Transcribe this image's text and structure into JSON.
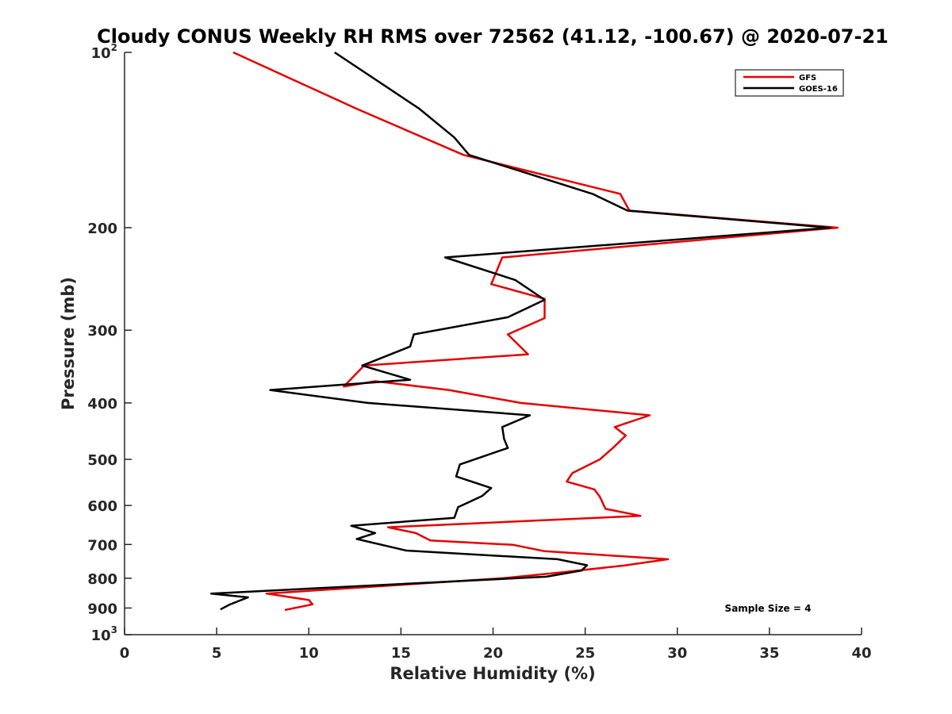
{
  "chart_data": {
    "type": "line",
    "title": "Cloudy CONUS Weekly RH RMS over 72562 (41.12, -100.67) @ 2020-07-21",
    "xlabel": "Relative Humidity (%)",
    "ylabel": "Pressure (mb)",
    "xlim": [
      0,
      40
    ],
    "ylim": [
      100,
      1000
    ],
    "y_scale": "log",
    "y_reversed": true,
    "grid": false,
    "legend_position": "top-right",
    "x_ticks": [
      "0",
      "5",
      "10",
      "15",
      "20",
      "25",
      "30",
      "35",
      "40"
    ],
    "x_tick_values": [
      0,
      5,
      10,
      15,
      20,
      25,
      30,
      35,
      40
    ],
    "y_ticks": [
      {
        "value": 100,
        "base": "10",
        "exp": "2"
      },
      {
        "value": 200,
        "base": "200",
        "exp": ""
      },
      {
        "value": 300,
        "base": "300",
        "exp": ""
      },
      {
        "value": 400,
        "base": "400",
        "exp": ""
      },
      {
        "value": 500,
        "base": "500",
        "exp": ""
      },
      {
        "value": 600,
        "base": "600",
        "exp": ""
      },
      {
        "value": 700,
        "base": "700",
        "exp": ""
      },
      {
        "value": 800,
        "base": "800",
        "exp": ""
      },
      {
        "value": 900,
        "base": "900",
        "exp": ""
      },
      {
        "value": 1000,
        "base": "10",
        "exp": "3"
      }
    ],
    "series": [
      {
        "name": "GFS",
        "color": "#e60000",
        "points": [
          [
            5.9,
            100
          ],
          [
            12.6,
            125
          ],
          [
            18.4,
            150
          ],
          [
            26.9,
            175
          ],
          [
            27.4,
            187
          ],
          [
            38.7,
            200
          ],
          [
            20.5,
            225
          ],
          [
            19.9,
            250
          ],
          [
            22.8,
            265
          ],
          [
            22.8,
            286
          ],
          [
            20.8,
            305
          ],
          [
            21.9,
            330
          ],
          [
            13.0,
            345
          ],
          [
            11.9,
            375
          ],
          [
            13.6,
            367
          ],
          [
            17.6,
            380
          ],
          [
            21.5,
            400
          ],
          [
            28.5,
            420
          ],
          [
            26.6,
            440
          ],
          [
            27.2,
            455
          ],
          [
            26.5,
            478
          ],
          [
            25.8,
            500
          ],
          [
            24.3,
            528
          ],
          [
            24.0,
            546
          ],
          [
            25.5,
            563
          ],
          [
            25.8,
            580
          ],
          [
            26.1,
            608
          ],
          [
            28.0,
            625
          ],
          [
            14.3,
            654
          ],
          [
            15.8,
            669
          ],
          [
            16.6,
            689
          ],
          [
            21.1,
            701
          ],
          [
            22.8,
            719
          ],
          [
            29.5,
            742
          ],
          [
            27.1,
            761
          ],
          [
            23.8,
            781
          ],
          [
            20.5,
            800
          ],
          [
            7.7,
            850
          ],
          [
            10.0,
            872
          ],
          [
            10.2,
            887
          ],
          [
            8.7,
            907
          ]
        ]
      },
      {
        "name": "GOES-16",
        "color": "#000000",
        "points": [
          [
            11.4,
            100
          ],
          [
            16.0,
            125
          ],
          [
            17.9,
            140
          ],
          [
            18.7,
            150
          ],
          [
            25.4,
            175
          ],
          [
            27.3,
            187
          ],
          [
            38.3,
            200
          ],
          [
            17.4,
            225
          ],
          [
            21.2,
            246
          ],
          [
            22.8,
            266
          ],
          [
            20.8,
            285
          ],
          [
            15.7,
            305
          ],
          [
            15.5,
            320
          ],
          [
            12.9,
            345
          ],
          [
            15.5,
            365
          ],
          [
            7.9,
            380
          ],
          [
            13.2,
            400
          ],
          [
            22.0,
            420
          ],
          [
            20.5,
            440
          ],
          [
            20.6,
            461
          ],
          [
            20.8,
            478
          ],
          [
            18.2,
            510
          ],
          [
            18.0,
            535
          ],
          [
            19.9,
            560
          ],
          [
            19.4,
            578
          ],
          [
            18.1,
            604
          ],
          [
            17.9,
            630
          ],
          [
            12.3,
            650
          ],
          [
            13.6,
            669
          ],
          [
            12.6,
            685
          ],
          [
            15.3,
            717
          ],
          [
            23.5,
            742
          ],
          [
            25.1,
            760
          ],
          [
            24.8,
            776
          ],
          [
            22.9,
            795
          ],
          [
            4.7,
            850
          ],
          [
            6.7,
            863
          ],
          [
            5.7,
            888
          ],
          [
            5.2,
            905
          ]
        ]
      }
    ],
    "annotations": [
      {
        "text": "Sample Size = 4"
      }
    ]
  }
}
